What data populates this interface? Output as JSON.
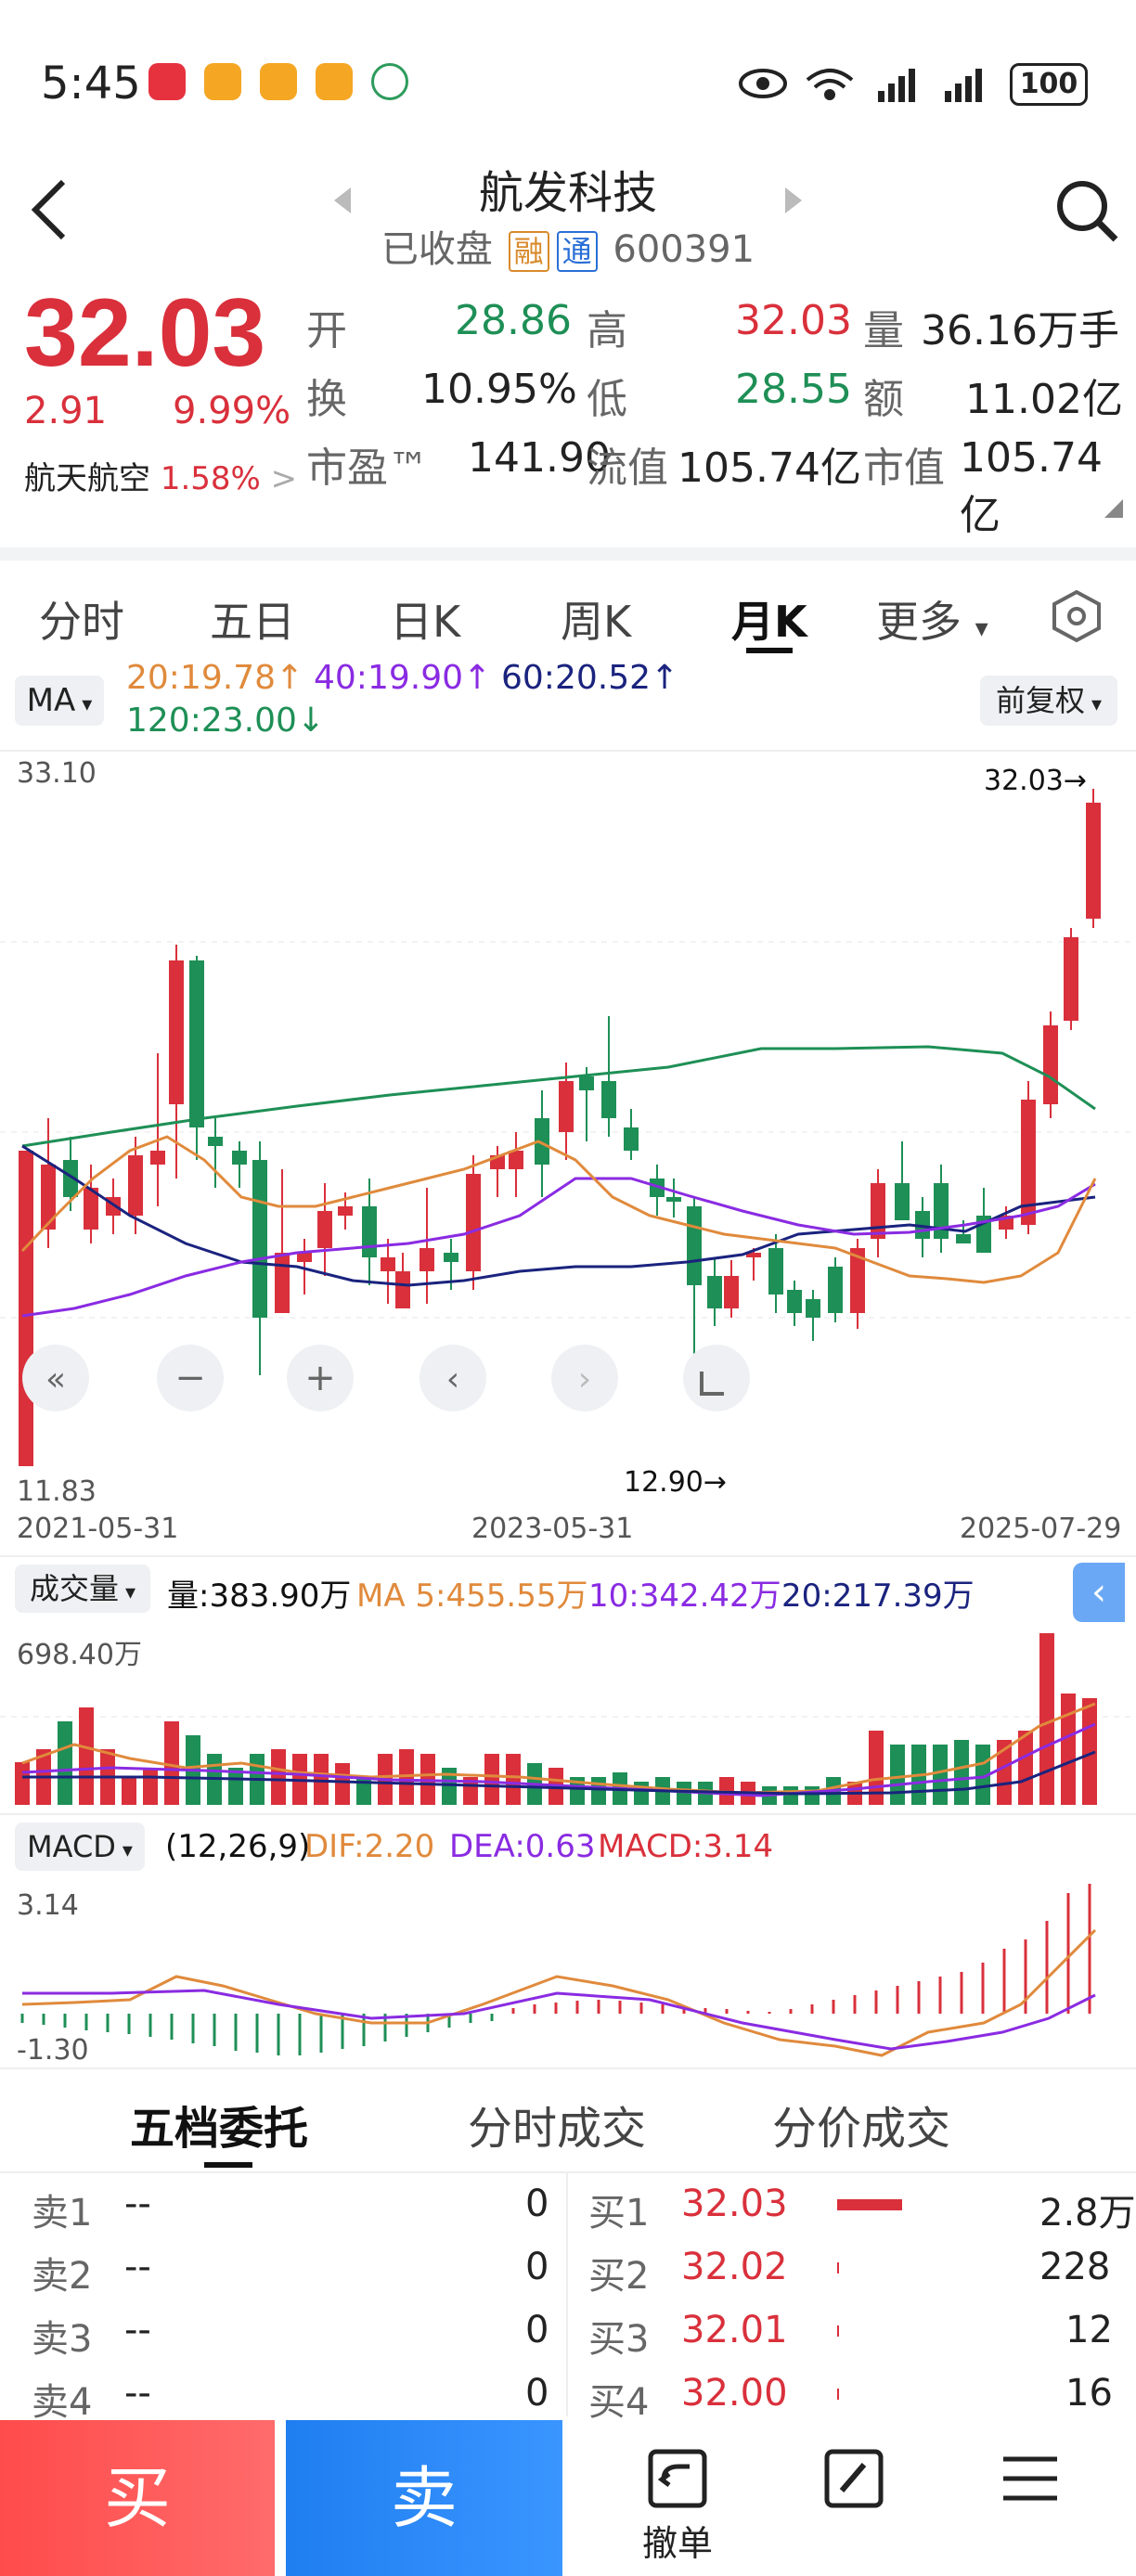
{
  "status": {
    "time": "5:45",
    "battery": "100"
  },
  "header": {
    "title": "航发科技",
    "status": "已收盘",
    "tag_rong": "融",
    "tag_tong": "通",
    "code": "600391"
  },
  "quote": {
    "price": "32.03",
    "change": "2.91",
    "change_pct": "9.99%",
    "sector": "航天航空",
    "sector_pct": "1.58%",
    "open_label": "开",
    "open": "28.86",
    "high_label": "高",
    "high": "32.03",
    "vol_label": "量",
    "vol": "36.16万手",
    "turnover_label": "换",
    "turnover": "10.95%",
    "low_label": "低",
    "low": "28.55",
    "amount_label": "额",
    "amount": "11.02亿",
    "pe_label": "市盈™",
    "pe": "141.90",
    "float_label": "流值",
    "float_cap": "105.74亿",
    "mktcap_label": "市值",
    "mktcap": "105.74亿"
  },
  "tabs": [
    "分时",
    "五日",
    "日K",
    "周K",
    "月K",
    "更多"
  ],
  "active_tab": "月K",
  "ma": {
    "selector": "MA",
    "ma20": "20:19.78↑",
    "ma40": "40:19.90↑",
    "ma60": "60:20.52↑",
    "ma120": "120:23.00↓",
    "adjust": "前复权"
  },
  "colors": {
    "up": "#d9303b",
    "down": "#1e8f56",
    "ma20": "#e08a3c",
    "ma40": "#8a2be2",
    "ma60": "#1a237e",
    "ma120": "#1e8f56"
  },
  "kchart": {
    "y_max_label": "33.10",
    "y_min_label": "11.83",
    "high_marker": "32.03→",
    "low_marker": "12.90→",
    "x_labels": [
      "2021-05-31",
      "2023-05-31",
      "2025-07-29"
    ]
  },
  "volume": {
    "selector": "成交量",
    "vol_text": "量:383.90万",
    "ma5": "MA 5:455.55万",
    "ma10": "10:342.42万",
    "ma20": "20:217.39万",
    "max_label": "698.40万"
  },
  "macd": {
    "selector": "MACD",
    "params": "(12,26,9)",
    "dif": "DIF:2.20",
    "dea": "DEA:0.63",
    "macd": "MACD:3.14",
    "max_label": "3.14",
    "min_label": "-1.30"
  },
  "orderbook_tabs": [
    "五档委托",
    "分时成交",
    "分价成交"
  ],
  "orderbook": {
    "sell": [
      {
        "label": "卖1",
        "price": "--",
        "vol": "0"
      },
      {
        "label": "卖2",
        "price": "--",
        "vol": "0"
      },
      {
        "label": "卖3",
        "price": "--",
        "vol": "0"
      },
      {
        "label": "卖4",
        "price": "--",
        "vol": "0"
      }
    ],
    "buy": [
      {
        "label": "买1",
        "price": "32.03",
        "vol": "2.8万"
      },
      {
        "label": "买2",
        "price": "32.02",
        "vol": "228"
      },
      {
        "label": "买3",
        "price": "32.01",
        "vol": "12"
      },
      {
        "label": "买4",
        "price": "32.00",
        "vol": "16"
      }
    ]
  },
  "bottom": {
    "buy": "买",
    "sell": "卖",
    "cancel": "撤单"
  },
  "chart_data": {
    "type": "candlestick",
    "categories": [
      "2021-05-31",
      "2023-05-31",
      "2025-07-29"
    ],
    "ylim": [
      11.83,
      33.1
    ],
    "series": []
  }
}
